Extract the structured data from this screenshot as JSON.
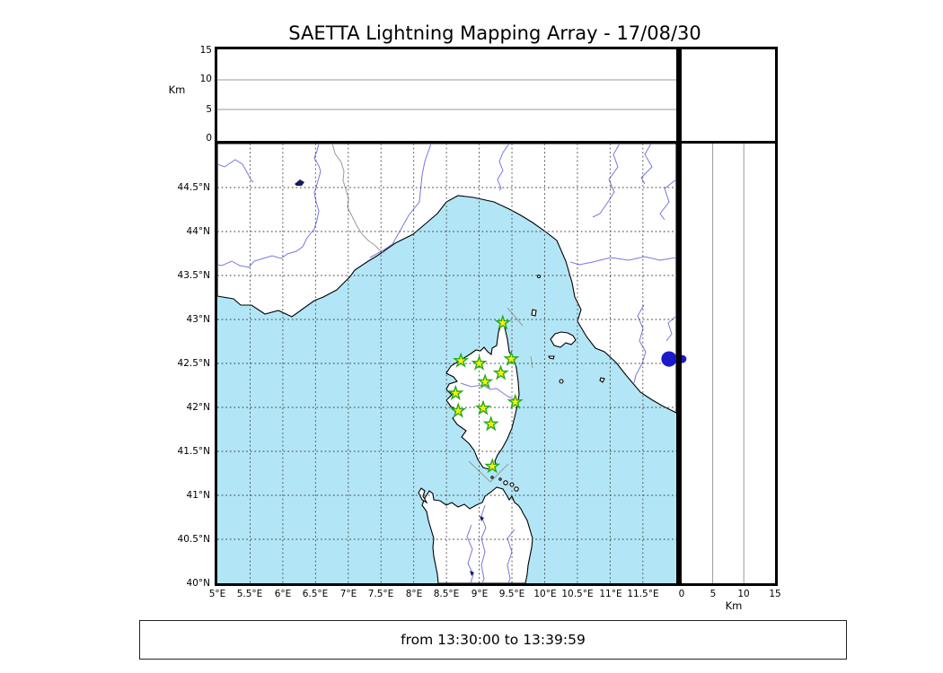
{
  "title": "SAETTA Lightning Mapping Array - 17/08/30",
  "footer": {
    "text": "from 13:30:00 to 13:39:59"
  },
  "alt_axis": {
    "label": "Km",
    "tick_labels": [
      "0",
      "5",
      "10",
      "15"
    ],
    "max_km": 15
  },
  "right_axis": {
    "label": "Km",
    "tick_labels": [
      "0",
      "5",
      "10",
      "15"
    ],
    "max_km": 15
  },
  "panel_grid_km": [
    5,
    10
  ],
  "map": {
    "extent": {
      "lon_min": 5,
      "lon_max": 12.01,
      "lat_min": 40,
      "lat_max": 45
    },
    "lon_tick_labels": [
      "5°E",
      "5.5°E",
      "6°E",
      "6.5°E",
      "7°E",
      "7.5°E",
      "8°E",
      "8.5°E",
      "9°E",
      "9.5°E",
      "10°E",
      "10.5°E",
      "11°E",
      "11.5°E"
    ],
    "lat_tick_labels": [
      "44.5°N",
      "44°N",
      "43.5°N",
      "43°N",
      "42.5°N",
      "42°N",
      "41.5°N",
      "41°N",
      "40.5°N",
      "40°N"
    ],
    "grid_lon_values": [
      5.5,
      6,
      6.5,
      7,
      7.5,
      8,
      8.5,
      9,
      9.5,
      10,
      10.5,
      11,
      11.5
    ],
    "grid_lat_values": [
      40.5,
      41,
      41.5,
      42,
      42.5,
      43,
      43.5,
      44,
      44.5
    ],
    "stations": [
      {
        "lon": 9.36,
        "lat": 42.96
      },
      {
        "lon": 8.72,
        "lat": 42.53
      },
      {
        "lon": 9.0,
        "lat": 42.5
      },
      {
        "lon": 9.49,
        "lat": 42.55
      },
      {
        "lon": 9.33,
        "lat": 42.39
      },
      {
        "lon": 9.09,
        "lat": 42.29
      },
      {
        "lon": 8.64,
        "lat": 42.16
      },
      {
        "lon": 9.55,
        "lat": 42.06
      },
      {
        "lon": 9.06,
        "lat": 41.99
      },
      {
        "lon": 8.68,
        "lat": 41.96
      },
      {
        "lon": 9.18,
        "lat": 41.81
      },
      {
        "lon": 9.2,
        "lat": 41.33
      }
    ],
    "event_sources": [
      {
        "lon": 11.9,
        "lat": 42.55,
        "alt_km": 0
      }
    ]
  },
  "colors": {
    "sea": "#b2e6f7",
    "land": "#ffffff",
    "coast": "#000000",
    "river": "#7878dd",
    "lake": "#1a1a60",
    "country_border": "#999999",
    "chart_line": "#9a9a9a",
    "grid": "#444444",
    "panel_grid": "#999999",
    "station_fill": "#ffee00",
    "station_stroke": "#22aa22",
    "event_dot": "#1a1acc"
  }
}
